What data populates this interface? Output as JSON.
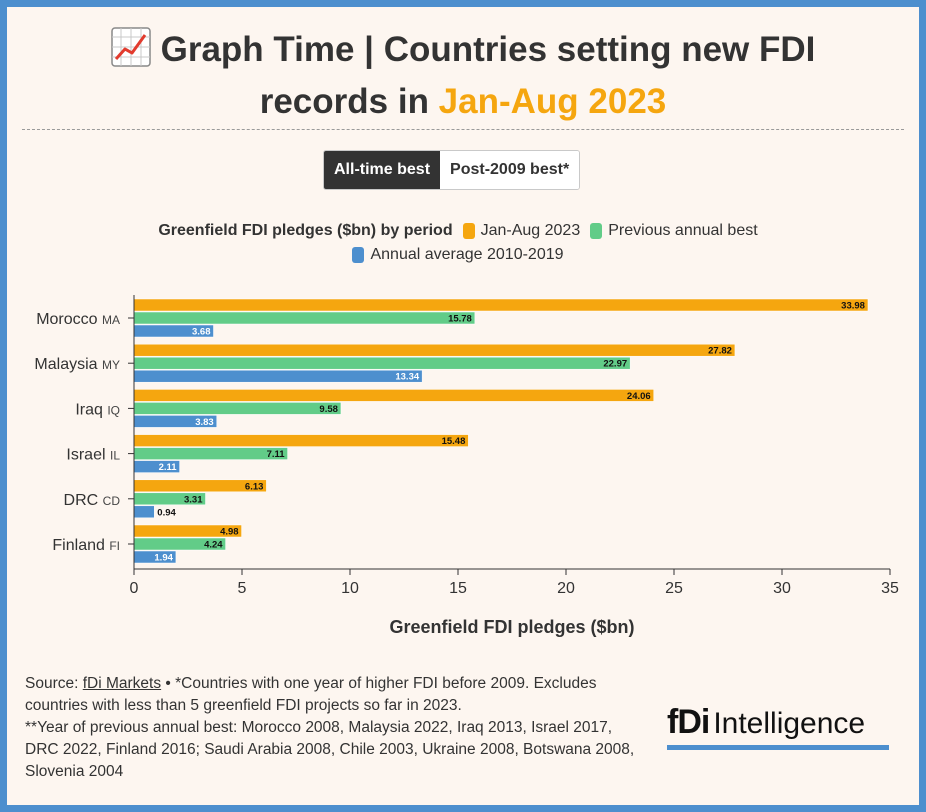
{
  "header": {
    "icon": "chart-increasing-icon",
    "title_main": "Graph Time | Countries setting new FDI",
    "title_line2_prefix": "records in ",
    "title_highlight": "Jan-Aug 2023"
  },
  "toggle": {
    "options": [
      "All-time best",
      "Post-2009 best*"
    ],
    "selected": "All-time best"
  },
  "legend": {
    "title": "Greenfield FDI pledges ($bn) by period",
    "position": "top-center"
  },
  "chart_data": {
    "type": "bar",
    "orientation": "horizontal",
    "categories": [
      "Morocco",
      "Malaysia",
      "Iraq",
      "Israel",
      "DRC",
      "Finland"
    ],
    "category_codes": [
      "MA",
      "MY",
      "IQ",
      "IL",
      "CD",
      "FI"
    ],
    "series": [
      {
        "name": "Jan-Aug 2023",
        "color": "#f5a60f",
        "values": [
          33.98,
          27.82,
          24.06,
          15.48,
          6.13,
          4.98
        ]
      },
      {
        "name": "Previous annual best",
        "color": "#62cc88",
        "values": [
          15.78,
          22.97,
          9.58,
          7.11,
          3.31,
          4.24
        ]
      },
      {
        "name": "Annual average 2010-2019",
        "color": "#4d8fce",
        "values": [
          3.68,
          13.34,
          3.83,
          2.11,
          0.94,
          1.94
        ]
      }
    ],
    "value_labels": [
      [
        "33.98",
        "27.82",
        "24.06",
        "15.48",
        "6.13",
        "4.98"
      ],
      [
        "15.78",
        "22.97",
        "9.58",
        "7.11",
        "3.31",
        "4.24"
      ],
      [
        "3.68",
        "13.34",
        "3.83",
        "2.11",
        "0.94",
        "1.94"
      ]
    ],
    "xlabel": "Greenfield FDI pledges ($bn)",
    "xlim": [
      0,
      35
    ],
    "xticks": [
      0,
      5,
      10,
      15,
      20,
      25,
      30,
      35
    ],
    "grid": false
  },
  "footer": {
    "source_prefix": "Source: ",
    "source_link": "fDi Markets",
    "note_1": " • *Countries with one year of higher FDI before 2009. Excludes countries with less than 5 greenfield FDI projects so far in 2023.",
    "note_2": "**Year of previous annual best: Morocco 2008, Malaysia 2022, Iraq 2013, Israel 2017, DRC 2022, Finland 2016; Saudi Arabia 2008, Chile 2003, Ukraine 2008, Botswana 2008, Slovenia 2004"
  },
  "logo": {
    "brand": "fDi",
    "text": "Intelligence"
  }
}
